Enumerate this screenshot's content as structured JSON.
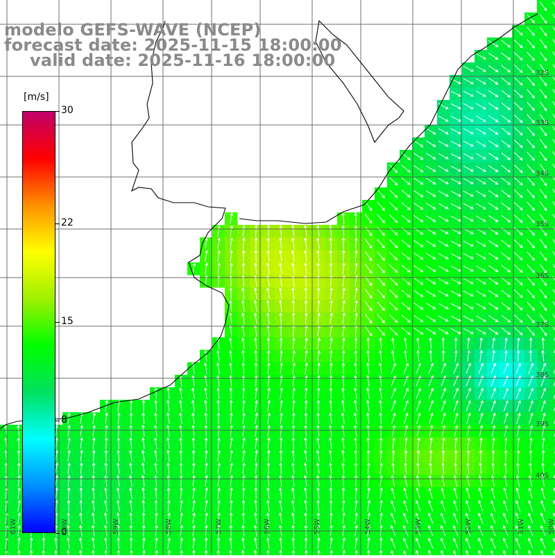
{
  "title": {
    "model": "modelo GEFS-WAVE (NCEP)",
    "forecast": "forecast date: 2025-11-15 18:00:00",
    "valid": "valid date: 2025-11-16 18:00:00"
  },
  "colorbar": {
    "units": "[m/s]",
    "min": 0,
    "max": 30,
    "ticks": [
      {
        "value": 30,
        "label": "30"
      },
      {
        "value": 22,
        "label": "22"
      },
      {
        "value": 15,
        "label": "15"
      },
      {
        "value": 8,
        "label": "8"
      },
      {
        "value": 0,
        "label": "0"
      }
    ],
    "colors": [
      "#0000ff",
      "#0090ff",
      "#00ffff",
      "#00e060",
      "#00ff00",
      "#a0f000",
      "#ffff00",
      "#ff9000",
      "#ff0000",
      "#c0006a"
    ]
  },
  "axes": {
    "lon_labels": [
      "61W",
      "60W",
      "59W",
      "58W",
      "57W",
      "56W",
      "55W",
      "54W",
      "53W",
      "52W",
      "51W",
      "50W"
    ],
    "lat_labels": [
      "32S",
      "33S",
      "34S",
      "35S",
      "36S",
      "37S",
      "38S",
      "39S",
      "40S"
    ]
  },
  "field": {
    "variable": "wind speed",
    "units": "m/s",
    "high_core": "17 m/s near 56W 36S",
    "low_core": "8 m/s near 51W 38S"
  }
}
